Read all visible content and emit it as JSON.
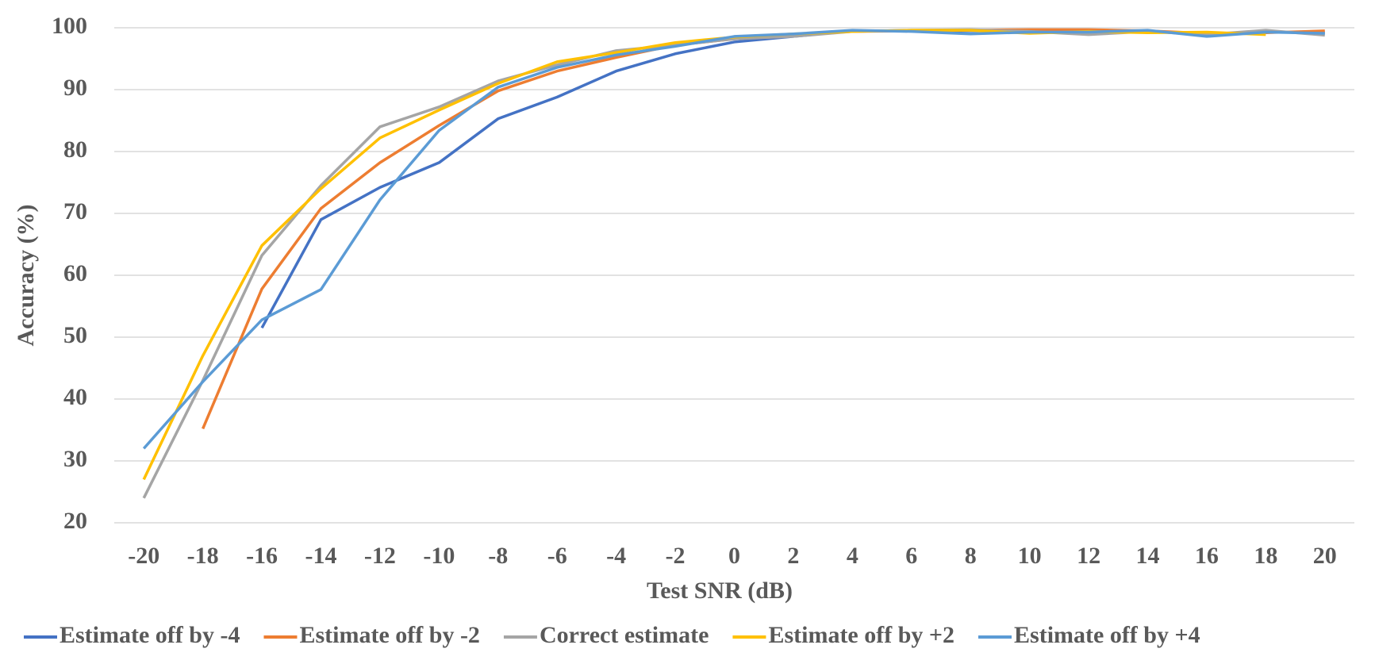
{
  "chart_data": {
    "type": "line",
    "x_label": "Test SNR (dB)",
    "y_label": "Accuracy (%)",
    "x": [
      -20,
      -18,
      -16,
      -14,
      -12,
      -10,
      -8,
      -6,
      -4,
      -2,
      0,
      2,
      4,
      6,
      8,
      10,
      12,
      14,
      16,
      18,
      20
    ],
    "xlim": [
      -21,
      21
    ],
    "xticks": [
      -20,
      -18,
      -16,
      -14,
      -12,
      -10,
      -8,
      -6,
      -4,
      -2,
      0,
      2,
      4,
      6,
      8,
      10,
      12,
      14,
      16,
      18,
      20
    ],
    "ylim": [
      20,
      100
    ],
    "yticks": [
      20,
      30,
      40,
      50,
      60,
      70,
      80,
      90,
      100
    ],
    "grid": true,
    "legend": "bottom",
    "series": [
      {
        "name": "Estimate off by -4",
        "color": "#4472c4",
        "values": [
          null,
          null,
          51.5,
          69,
          74.2,
          78.2,
          85.3,
          88.8,
          93,
          95.8,
          97.7,
          98.6,
          99.5,
          99.5,
          99.5,
          99.5,
          99.5,
          99.5,
          98.8,
          99.3,
          99.2
        ]
      },
      {
        "name": "Estimate off by -2",
        "color": "#ed7d31",
        "values": [
          null,
          35.2,
          57.8,
          70.8,
          78.2,
          84.2,
          89.8,
          93,
          95.2,
          97.2,
          98.2,
          98.8,
          99.4,
          99.5,
          99.6,
          99.7,
          99.7,
          99.5,
          99.1,
          99.2,
          99.5
        ]
      },
      {
        "name": "Correct estimate",
        "color": "#a5a5a5",
        "values": [
          24,
          43,
          63.2,
          74.5,
          84,
          87.2,
          91.4,
          94,
          96.3,
          97.2,
          98.2,
          98.6,
          99.4,
          99.6,
          99.7,
          99.4,
          98.9,
          99.4,
          98.9,
          99.6,
          98.8
        ]
      },
      {
        "name": "Estimate off by +2",
        "color": "#ffc000",
        "values": [
          27,
          47,
          64.8,
          74,
          82.2,
          86.7,
          91,
          94.5,
          96,
          97.6,
          98.5,
          99,
          99.4,
          99.6,
          99.6,
          99.1,
          99.4,
          99.2,
          99.3,
          98.9,
          null
        ]
      },
      {
        "name": "Estimate off by +4",
        "color": "#5b9bd5",
        "values": [
          32,
          42.8,
          52.8,
          57.7,
          72.2,
          83.4,
          90.4,
          93.6,
          95.6,
          97,
          98.6,
          99,
          99.6,
          99.4,
          99,
          99.3,
          99.3,
          99.6,
          98.6,
          99.3,
          99.1
        ]
      }
    ]
  }
}
